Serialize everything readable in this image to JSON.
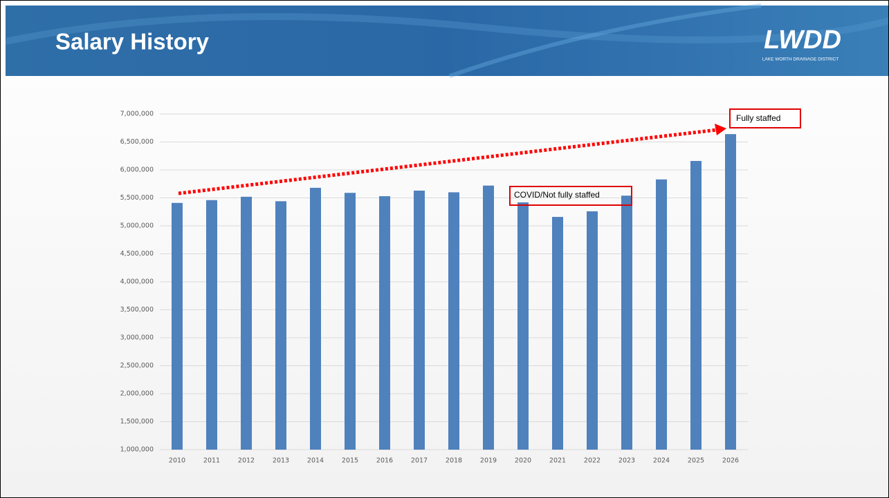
{
  "logo": {
    "text": "LWDD",
    "subtitle": "LAKE WORTH DRAINAGE DISTRICT"
  },
  "chart_data": {
    "type": "bar",
    "title": "Salary History",
    "categories": [
      "2010",
      "2011",
      "2012",
      "2013",
      "2014",
      "2015",
      "2016",
      "2017",
      "2018",
      "2019",
      "2020",
      "2021",
      "2022",
      "2023",
      "2024",
      "2025",
      "2026"
    ],
    "values": [
      5410000,
      5460000,
      5520000,
      5440000,
      5680000,
      5590000,
      5530000,
      5630000,
      5600000,
      5720000,
      5420000,
      5160000,
      5260000,
      5540000,
      5830000,
      6160000,
      6640000
    ],
    "color": "#4f81bd",
    "ylim": [
      1000000,
      7000000
    ],
    "yticks": [
      {
        "value": 1000000,
        "label": "1,000,000"
      },
      {
        "value": 1500000,
        "label": "1,500,000"
      },
      {
        "value": 2000000,
        "label": "2,000,000"
      },
      {
        "value": 2500000,
        "label": "2,500,000"
      },
      {
        "value": 3000000,
        "label": "3,000,000"
      },
      {
        "value": 3500000,
        "label": "3,500,000"
      },
      {
        "value": 4000000,
        "label": "4,000,000"
      },
      {
        "value": 4500000,
        "label": "4,500,000"
      },
      {
        "value": 5000000,
        "label": "5,000,000"
      },
      {
        "value": 5500000,
        "label": "5,500,000"
      },
      {
        "value": 6000000,
        "label": "6,000,000"
      },
      {
        "value": 6500000,
        "label": "6,500,000"
      },
      {
        "value": 7000000,
        "label": "7,000,000"
      }
    ],
    "grid": true,
    "annotations": [
      "Fully staffed",
      "COVID/Not fully staffed"
    ]
  }
}
